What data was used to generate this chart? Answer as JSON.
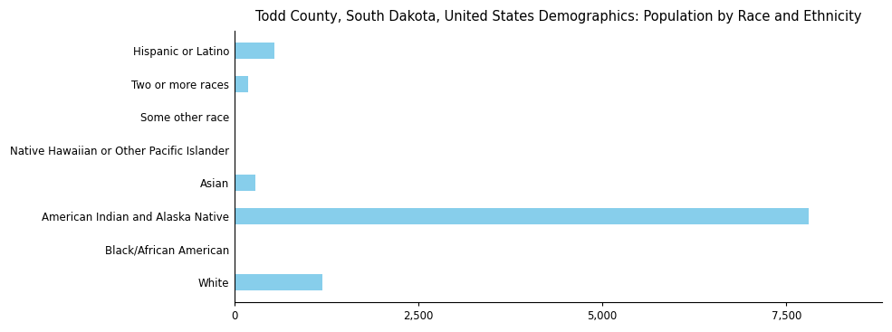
{
  "title": "Todd County, South Dakota, United States Demographics: Population by Race and Ethnicity",
  "categories": [
    "White",
    "Black/African American",
    "American Indian and Alaska Native",
    "Asian",
    "Native Hawaiian or Other Pacific Islander",
    "Some other race",
    "Two or more races",
    "Hispanic or Latino"
  ],
  "values": [
    1200,
    12,
    7800,
    290,
    10,
    20,
    190,
    550
  ],
  "bar_color": "#87CEEB",
  "xlim": [
    0,
    8800
  ],
  "xticks": [
    0,
    2500,
    5000,
    7500
  ],
  "xtick_labels": [
    "0",
    "2,500",
    "5,000",
    "7,500"
  ],
  "title_fontsize": 10.5,
  "tick_fontsize": 8.5,
  "background_color": "#ffffff",
  "figsize": [
    9.85,
    3.67
  ],
  "dpi": 100
}
